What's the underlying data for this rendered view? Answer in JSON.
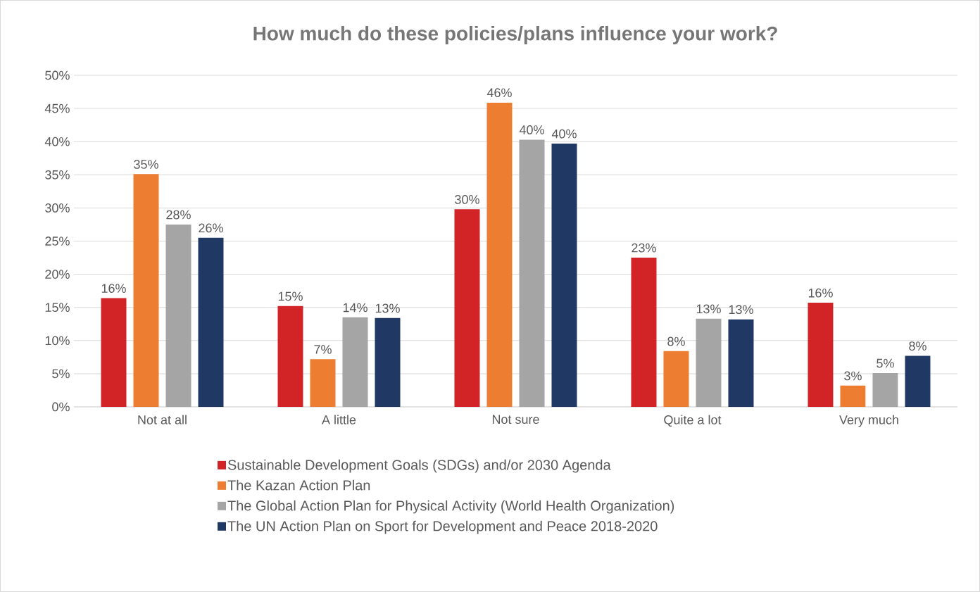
{
  "chart_data": {
    "type": "bar",
    "title": "How much do these policies/plans influence your work?",
    "categories": [
      "Not at all",
      "A little",
      "Not sure",
      "Quite a lot",
      "Very much"
    ],
    "series": [
      {
        "name": "Sustainable Development Goals (SDGs) and/or 2030 Agenda",
        "color": "#d22427",
        "values": [
          16.4,
          15.2,
          29.8,
          22.5,
          15.7
        ],
        "value_labels": [
          "16%",
          "15%",
          "30%",
          "23%",
          "16%"
        ]
      },
      {
        "name": "The Kazan Action Plan",
        "color": "#ed7d31",
        "values": [
          35.1,
          7.2,
          45.9,
          8.4,
          3.2
        ],
        "value_labels": [
          "35%",
          "7%",
          "46%",
          "8%",
          "3%"
        ]
      },
      {
        "name": "The Global Action Plan for Physical Activity (World Health Organization)",
        "color": "#a5a5a5",
        "values": [
          27.5,
          13.5,
          40.3,
          13.3,
          5.1
        ],
        "value_labels": [
          "28%",
          "14%",
          "40%",
          "13%",
          "5%"
        ]
      },
      {
        "name": "The UN Action Plan on Sport for Development and Peace 2018-2020",
        "color": "#1f3864",
        "values": [
          25.5,
          13.4,
          39.7,
          13.2,
          7.7
        ],
        "value_labels": [
          "26%",
          "13%",
          "40%",
          "13%",
          "8%"
        ]
      }
    ],
    "ylim": [
      0,
      50
    ],
    "yticks": [
      {
        "value": 0,
        "label": "0%"
      },
      {
        "value": 5,
        "label": "5%"
      },
      {
        "value": 10,
        "label": "10%"
      },
      {
        "value": 15,
        "label": "15%"
      },
      {
        "value": 20,
        "label": "20%"
      },
      {
        "value": 25,
        "label": "25%"
      },
      {
        "value": 30,
        "label": "30%"
      },
      {
        "value": 35,
        "label": "35%"
      },
      {
        "value": 40,
        "label": "40%"
      },
      {
        "value": 45,
        "label": "45%"
      },
      {
        "value": 50,
        "label": "50%"
      }
    ],
    "grid": "y",
    "legend": "bottom"
  }
}
